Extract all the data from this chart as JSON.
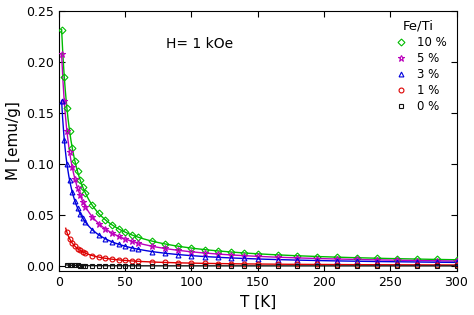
{
  "title": "",
  "xlabel": "T [K]",
  "ylabel": "M [emu/g]",
  "annotation": "H= 1 kOe",
  "legend_title": "Fe/Ti",
  "xlim": [
    0,
    300
  ],
  "ylim": [
    -0.005,
    0.25
  ],
  "yticks": [
    0.0,
    0.05,
    0.1,
    0.15,
    0.2,
    0.25
  ],
  "xticks": [
    0,
    50,
    100,
    150,
    200,
    250,
    300
  ],
  "series": [
    {
      "label": "10 %",
      "color": "#00bb00",
      "marker": "D",
      "markersize": 3.5,
      "C": 1.85,
      "theta": 6.0,
      "T0": 2.0
    },
    {
      "label": "5 %",
      "color": "#bb00bb",
      "marker": "*",
      "markersize": 5.0,
      "C": 1.45,
      "theta": 5.0,
      "T0": 2.0
    },
    {
      "label": "3 %",
      "color": "#0000dd",
      "marker": "^",
      "markersize": 3.5,
      "C": 1.05,
      "theta": 4.5,
      "T0": 2.0
    },
    {
      "label": "1 %",
      "color": "#dd0000",
      "marker": "o",
      "markersize": 3.5,
      "C": 0.28,
      "theta": 2.5,
      "T0": 5.0
    },
    {
      "label": "0 %",
      "color": "#111111",
      "marker": "s",
      "markersize": 3.0,
      "C": 0.006,
      "theta": 0.3,
      "T0": 5.0
    }
  ]
}
